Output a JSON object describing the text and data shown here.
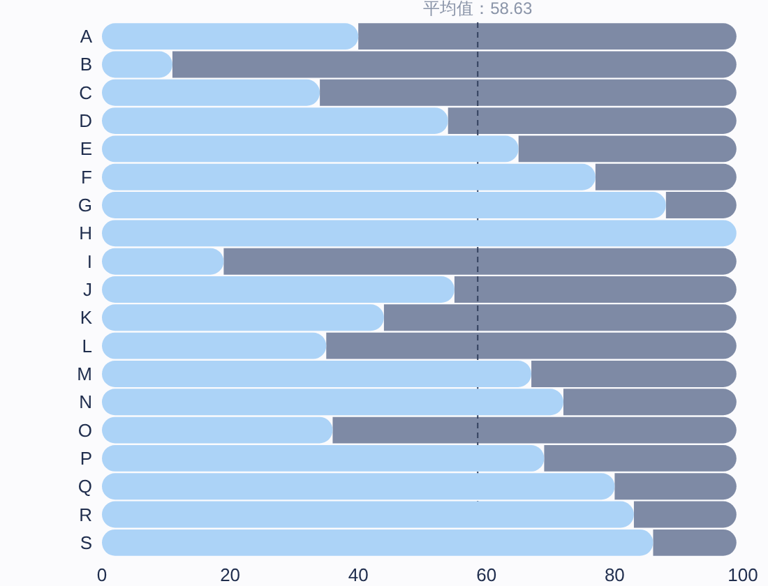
{
  "chart_data": {
    "type": "bar",
    "orientation": "horizontal",
    "stacked": true,
    "grid": false,
    "categories": [
      "A",
      "B",
      "C",
      "D",
      "E",
      "F",
      "G",
      "H",
      "I",
      "J",
      "K",
      "L",
      "M",
      "N",
      "O",
      "P",
      "Q",
      "R",
      "S"
    ],
    "series": [
      {
        "color": "#acd3f7",
        "values": [
          40,
          11,
          34,
          54,
          65,
          77,
          88,
          99,
          19,
          55,
          44,
          35,
          67,
          72,
          36,
          69,
          80,
          83,
          86
        ]
      },
      {
        "color": "#7e8aa5",
        "values": [
          59,
          88,
          65,
          45,
          34,
          22,
          11,
          0,
          80,
          44,
          55,
          64,
          32,
          27,
          63,
          30,
          19,
          16,
          13
        ]
      }
    ],
    "xlim": [
      0,
      100
    ],
    "xticks": [
      0,
      20,
      40,
      60,
      80,
      100
    ],
    "ref_lines": [
      {
        "axis": "x",
        "value": 58.63,
        "label": "平均值：58.63",
        "color": "#33415e",
        "line_style": "dashed"
      }
    ]
  }
}
